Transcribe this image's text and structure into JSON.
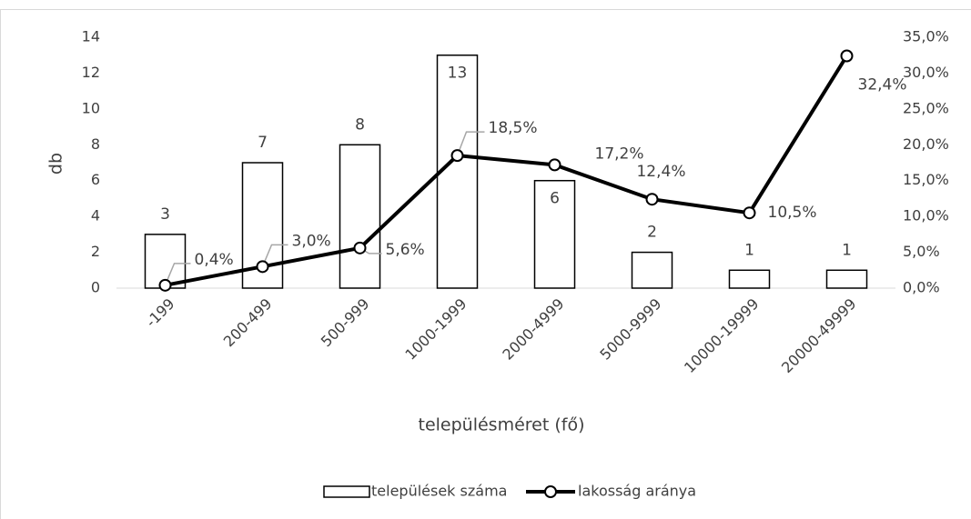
{
  "chart_data": {
    "type": "combo",
    "x_label": "településméret (fő)",
    "y_label": "db",
    "categories": [
      "-199",
      "200-499",
      "500-999",
      "1000-1999",
      "2000-4999",
      "5000-9999",
      "10000-19999",
      "20000-49999"
    ],
    "ylim": [
      0,
      14
    ],
    "yticks": [
      0,
      2,
      4,
      6,
      8,
      10,
      12,
      14
    ],
    "y2lim": [
      0,
      35
    ],
    "y2ticks": [
      {
        "value": 0,
        "label": "0,0%"
      },
      {
        "value": 5,
        "label": "5,0%"
      },
      {
        "value": 10,
        "label": "10,0%"
      },
      {
        "value": 15,
        "label": "15,0%"
      },
      {
        "value": 20,
        "label": "20,0%"
      },
      {
        "value": 25,
        "label": "25,0%"
      },
      {
        "value": 30,
        "label": "30,0%"
      },
      {
        "value": 35,
        "label": "35,0%"
      }
    ],
    "legend": "bottom",
    "series": [
      {
        "name": "települések száma",
        "type": "bar",
        "color": "#ffffff",
        "values": [
          3,
          7,
          8,
          13,
          6,
          2,
          1,
          1
        ]
      },
      {
        "name": "lakosság aránya",
        "type": "line",
        "axis": "y2",
        "color": "#000000",
        "values": [
          0.4,
          3.0,
          5.6,
          18.5,
          17.2,
          12.4,
          10.5,
          32.4
        ],
        "value_labels": [
          "0,4%",
          "3,0%",
          "5,6%",
          "18,5%",
          "17,2%",
          "12,4%",
          "10,5%",
          "32,4%"
        ]
      }
    ]
  }
}
